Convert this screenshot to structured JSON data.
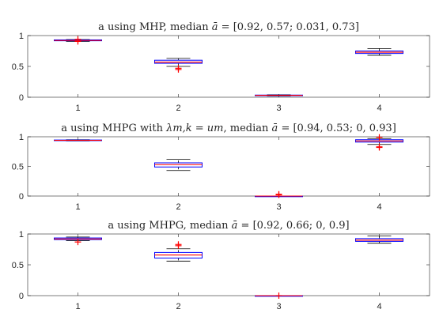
{
  "chart_data": [
    {
      "type": "boxplot",
      "title_parts": [
        "a using MHP, median ",
        "ā",
        " = [0.92, 0.57; 0.031, 0.73]"
      ],
      "categories": [
        "1",
        "2",
        "3",
        "4"
      ],
      "ylim": [
        0,
        1
      ],
      "yticks": [
        "0",
        "0.5",
        "1"
      ],
      "grid": false,
      "boxes": [
        {
          "q1": 0.915,
          "median": 0.92,
          "q3": 0.93,
          "wlo": 0.905,
          "whi": 0.935,
          "outliers": [
            0.905,
            0.94
          ]
        },
        {
          "q1": 0.55,
          "median": 0.57,
          "q3": 0.6,
          "wlo": 0.5,
          "whi": 0.63,
          "outliers": [
            0.47,
            0.45
          ]
        },
        {
          "q1": 0.025,
          "median": 0.031,
          "q3": 0.035,
          "wlo": 0.02,
          "whi": 0.04,
          "outliers": []
        },
        {
          "q1": 0.71,
          "median": 0.73,
          "q3": 0.75,
          "wlo": 0.68,
          "whi": 0.79,
          "outliers": []
        }
      ]
    },
    {
      "type": "boxplot",
      "title_parts": [
        "a using MHPG with ",
        "λm,k = um",
        ", median ",
        "ā",
        " = [0.94, 0.53; 0, 0.93]"
      ],
      "categories": [
        "1",
        "2",
        "3",
        "4"
      ],
      "ylim": [
        0,
        1
      ],
      "yticks": [
        "0",
        "0.5",
        "1"
      ],
      "grid": false,
      "boxes": [
        {
          "q1": 0.935,
          "median": 0.94,
          "q3": 0.945,
          "wlo": 0.93,
          "whi": 0.95,
          "outliers": []
        },
        {
          "q1": 0.49,
          "median": 0.53,
          "q3": 0.56,
          "wlo": 0.43,
          "whi": 0.62,
          "outliers": []
        },
        {
          "q1": 0.0,
          "median": 0.0,
          "q3": 0.0,
          "wlo": 0.0,
          "whi": 0.0,
          "outliers": [
            0.02,
            0.03
          ]
        },
        {
          "q1": 0.91,
          "median": 0.93,
          "q3": 0.95,
          "wlo": 0.87,
          "whi": 0.97,
          "outliers": [
            0.83,
            0.82,
            0.99
          ]
        }
      ]
    },
    {
      "type": "boxplot",
      "title_parts": [
        "a using MHPG, median ",
        "ā",
        " = [0.92, 0.66; 0, 0.9]"
      ],
      "categories": [
        "1",
        "2",
        "3",
        "4"
      ],
      "ylim": [
        0,
        1
      ],
      "yticks": [
        "0",
        "0.5",
        "1"
      ],
      "grid": false,
      "boxes": [
        {
          "q1": 0.91,
          "median": 0.92,
          "q3": 0.935,
          "wlo": 0.89,
          "whi": 0.95,
          "outliers": [
            0.87
          ]
        },
        {
          "q1": 0.61,
          "median": 0.66,
          "q3": 0.7,
          "wlo": 0.56,
          "whi": 0.76,
          "outliers": [
            0.81,
            0.83
          ]
        },
        {
          "q1": 0.0,
          "median": 0.0,
          "q3": 0.0,
          "wlo": 0.0,
          "whi": 0.0,
          "outliers": [
            0.0
          ]
        },
        {
          "q1": 0.88,
          "median": 0.9,
          "q3": 0.925,
          "wlo": 0.85,
          "whi": 0.97,
          "outliers": []
        }
      ]
    }
  ],
  "colors": {
    "box": "#0000ff",
    "median": "#ff0000",
    "outlier": "#ff0000",
    "whisker": "#000000",
    "axis": "#262626"
  }
}
